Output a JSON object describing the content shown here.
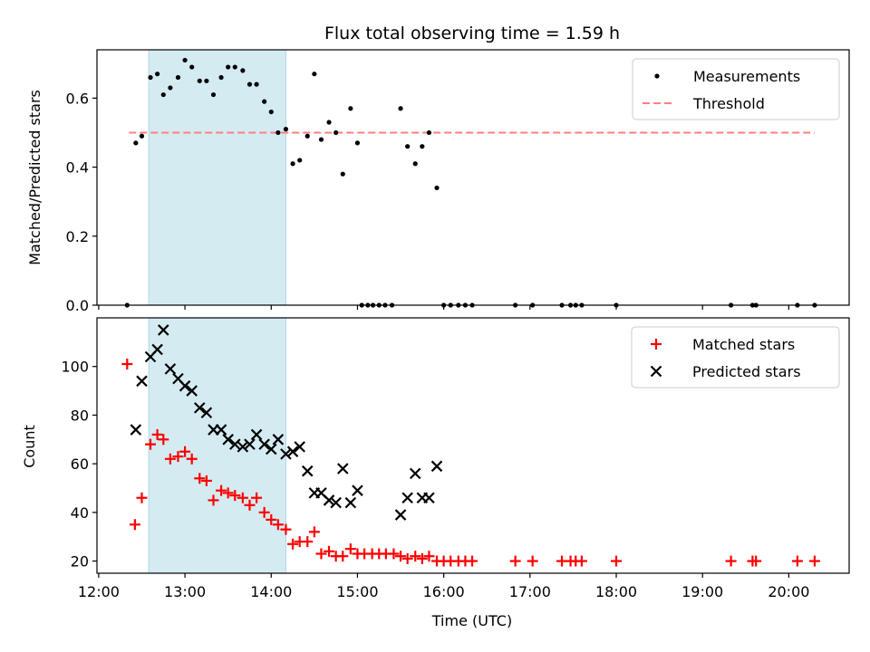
{
  "chart_data": {
    "type": "scatter",
    "title": "Flux total observing time = 1.59 h",
    "xlabel": "Time (UTC)",
    "x_tick_labels": [
      "12:00",
      "13:00",
      "14:00",
      "15:00",
      "16:00",
      "17:00",
      "18:00",
      "19:00",
      "20:00"
    ],
    "x_ticks_hours": [
      12,
      13,
      14,
      15,
      16,
      17,
      18,
      19,
      20
    ],
    "xlim_hours": [
      11.98,
      20.7
    ],
    "highlight_span_hours": [
      12.58,
      14.17
    ],
    "colors": {
      "measurements": "#000000",
      "threshold": "#ff7f7f",
      "matched": "#ff0000",
      "predicted": "#000000",
      "span": "#add8e6"
    },
    "panels": [
      {
        "ylabel": "Matched/Predicted stars",
        "ylim": [
          0,
          0.74
        ],
        "y_ticks": [
          0.0,
          0.2,
          0.4,
          0.6
        ],
        "y_tick_labels": [
          "0.0",
          "0.2",
          "0.4",
          "0.6"
        ],
        "legend": {
          "position": "upper right",
          "entries": [
            {
              "label": "Measurements",
              "marker": "dot"
            },
            {
              "label": "Threshold",
              "marker": "dashed-line"
            }
          ]
        },
        "threshold": {
          "name": "Threshold",
          "value": 0.5,
          "x_range_hours": [
            12.35,
            20.3
          ]
        },
        "series": [
          {
            "name": "Measurements",
            "marker": "dot",
            "points": [
              [
                12.33,
                0.0
              ],
              [
                12.43,
                0.47
              ],
              [
                12.5,
                0.49
              ],
              [
                12.6,
                0.66
              ],
              [
                12.68,
                0.67
              ],
              [
                12.75,
                0.61
              ],
              [
                12.83,
                0.63
              ],
              [
                12.92,
                0.66
              ],
              [
                13.0,
                0.71
              ],
              [
                13.08,
                0.69
              ],
              [
                13.17,
                0.65
              ],
              [
                13.25,
                0.65
              ],
              [
                13.33,
                0.61
              ],
              [
                13.42,
                0.66
              ],
              [
                13.5,
                0.69
              ],
              [
                13.58,
                0.69
              ],
              [
                13.67,
                0.68
              ],
              [
                13.75,
                0.64
              ],
              [
                13.83,
                0.64
              ],
              [
                13.92,
                0.59
              ],
              [
                14.0,
                0.56
              ],
              [
                14.08,
                0.5
              ],
              [
                14.17,
                0.51
              ],
              [
                14.25,
                0.41
              ],
              [
                14.33,
                0.42
              ],
              [
                14.42,
                0.49
              ],
              [
                14.5,
                0.67
              ],
              [
                14.58,
                0.48
              ],
              [
                14.67,
                0.53
              ],
              [
                14.75,
                0.5
              ],
              [
                14.83,
                0.38
              ],
              [
                14.92,
                0.57
              ],
              [
                15.0,
                0.47
              ],
              [
                15.05,
                0.0
              ],
              [
                15.12,
                0.0
              ],
              [
                15.18,
                0.0
              ],
              [
                15.25,
                0.0
              ],
              [
                15.32,
                0.0
              ],
              [
                15.4,
                0.0
              ],
              [
                15.5,
                0.57
              ],
              [
                15.58,
                0.46
              ],
              [
                15.67,
                0.41
              ],
              [
                15.75,
                0.46
              ],
              [
                15.83,
                0.5
              ],
              [
                15.92,
                0.34
              ],
              [
                16.0,
                0.0
              ],
              [
                16.08,
                0.0
              ],
              [
                16.17,
                0.0
              ],
              [
                16.25,
                0.0
              ],
              [
                16.33,
                0.0
              ],
              [
                16.83,
                0.0
              ],
              [
                17.03,
                0.0
              ],
              [
                17.37,
                0.0
              ],
              [
                17.47,
                0.0
              ],
              [
                17.53,
                0.0
              ],
              [
                17.6,
                0.0
              ],
              [
                18.0,
                0.0
              ],
              [
                19.33,
                0.0
              ],
              [
                19.58,
                0.0
              ],
              [
                19.62,
                0.0
              ],
              [
                20.1,
                0.0
              ],
              [
                20.3,
                0.0
              ]
            ]
          }
        ]
      },
      {
        "ylabel": "Count",
        "ylim": [
          15,
          120
        ],
        "y_ticks": [
          20,
          40,
          60,
          80,
          100
        ],
        "y_tick_labels": [
          "20",
          "40",
          "60",
          "80",
          "100"
        ],
        "legend": {
          "position": "upper right",
          "entries": [
            {
              "label": "Matched stars",
              "marker": "plus"
            },
            {
              "label": "Predicted stars",
              "marker": "x"
            }
          ]
        },
        "series": [
          {
            "name": "Matched stars",
            "marker": "plus",
            "points": [
              [
                12.33,
                101
              ],
              [
                12.42,
                35
              ],
              [
                12.5,
                46
              ],
              [
                12.6,
                68
              ],
              [
                12.68,
                72
              ],
              [
                12.75,
                70
              ],
              [
                12.83,
                62
              ],
              [
                12.92,
                63
              ],
              [
                13.0,
                65
              ],
              [
                13.08,
                62
              ],
              [
                13.17,
                54
              ],
              [
                13.25,
                53
              ],
              [
                13.33,
                45
              ],
              [
                13.42,
                49
              ],
              [
                13.5,
                48
              ],
              [
                13.58,
                47
              ],
              [
                13.67,
                46
              ],
              [
                13.75,
                43
              ],
              [
                13.83,
                46
              ],
              [
                13.92,
                40
              ],
              [
                14.0,
                37
              ],
              [
                14.08,
                35
              ],
              [
                14.17,
                33
              ],
              [
                14.25,
                27
              ],
              [
                14.33,
                28
              ],
              [
                14.42,
                28
              ],
              [
                14.5,
                32
              ],
              [
                14.58,
                23
              ],
              [
                14.67,
                24
              ],
              [
                14.75,
                22
              ],
              [
                14.83,
                22
              ],
              [
                14.92,
                25
              ],
              [
                15.0,
                23
              ],
              [
                15.08,
                23
              ],
              [
                15.17,
                23
              ],
              [
                15.25,
                23
              ],
              [
                15.33,
                23
              ],
              [
                15.42,
                23
              ],
              [
                15.5,
                22
              ],
              [
                15.58,
                21
              ],
              [
                15.67,
                22
              ],
              [
                15.75,
                21
              ],
              [
                15.83,
                22
              ],
              [
                15.92,
                20
              ],
              [
                16.0,
                20
              ],
              [
                16.08,
                20
              ],
              [
                16.17,
                20
              ],
              [
                16.25,
                20
              ],
              [
                16.33,
                20
              ],
              [
                16.83,
                20
              ],
              [
                17.03,
                20
              ],
              [
                17.37,
                20
              ],
              [
                17.47,
                20
              ],
              [
                17.53,
                20
              ],
              [
                17.6,
                20
              ],
              [
                18.0,
                20
              ],
              [
                19.33,
                20
              ],
              [
                19.58,
                20
              ],
              [
                19.62,
                20
              ],
              [
                20.1,
                20
              ],
              [
                20.3,
                20
              ]
            ]
          },
          {
            "name": "Predicted stars",
            "marker": "x",
            "points": [
              [
                12.43,
                74
              ],
              [
                12.5,
                94
              ],
              [
                12.6,
                104
              ],
              [
                12.68,
                107
              ],
              [
                12.75,
                115
              ],
              [
                12.83,
                99
              ],
              [
                12.92,
                95
              ],
              [
                13.0,
                92
              ],
              [
                13.08,
                90
              ],
              [
                13.17,
                83
              ],
              [
                13.25,
                81
              ],
              [
                13.33,
                74
              ],
              [
                13.42,
                74
              ],
              [
                13.5,
                70
              ],
              [
                13.58,
                68
              ],
              [
                13.67,
                67
              ],
              [
                13.75,
                68
              ],
              [
                13.83,
                72
              ],
              [
                13.92,
                68
              ],
              [
                14.0,
                66
              ],
              [
                14.08,
                70
              ],
              [
                14.17,
                64
              ],
              [
                14.25,
                65
              ],
              [
                14.33,
                67
              ],
              [
                14.42,
                57
              ],
              [
                14.5,
                48
              ],
              [
                14.58,
                48
              ],
              [
                14.67,
                45
              ],
              [
                14.75,
                44
              ],
              [
                14.83,
                58
              ],
              [
                14.92,
                44
              ],
              [
                15.0,
                49
              ],
              [
                15.5,
                39
              ],
              [
                15.58,
                46
              ],
              [
                15.67,
                56
              ],
              [
                15.75,
                46
              ],
              [
                15.83,
                46
              ],
              [
                15.92,
                59
              ]
            ]
          }
        ]
      }
    ]
  }
}
